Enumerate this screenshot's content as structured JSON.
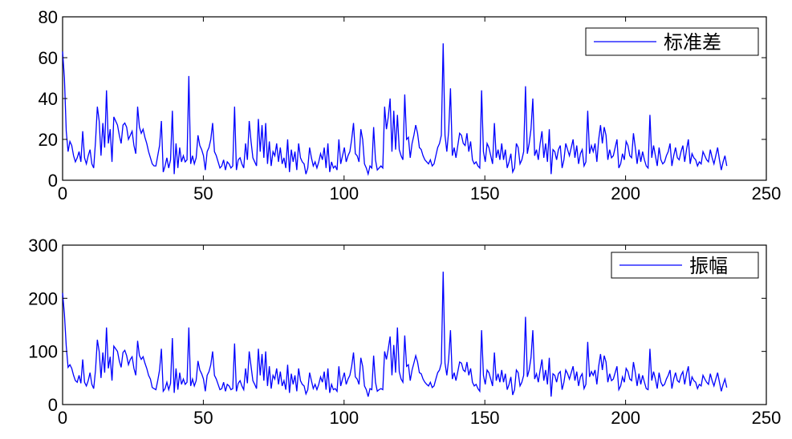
{
  "chart_data": [
    {
      "type": "line",
      "title": "",
      "xlabel": "",
      "ylabel": "",
      "xlim": [
        0,
        250
      ],
      "ylim": [
        0,
        80
      ],
      "xticks": [
        0,
        50,
        100,
        150,
        200,
        250
      ],
      "yticks": [
        0,
        20,
        40,
        60,
        80
      ],
      "xtick_labels": [
        "0",
        "50",
        "100",
        "150",
        "200",
        "250"
      ],
      "ytick_labels": [
        "0",
        "20",
        "40",
        "60",
        "80"
      ],
      "grid": false,
      "legend_position": "top-right",
      "line_color": "#0000ff",
      "series": [
        {
          "name": "标准差",
          "values": [
            63,
            50,
            24,
            14,
            19,
            17,
            12,
            9,
            11,
            14,
            9,
            24,
            11,
            8,
            12,
            15,
            8,
            6,
            19,
            36,
            29,
            12,
            28,
            16,
            44,
            18,
            25,
            9,
            31,
            29,
            27,
            22,
            18,
            27,
            28,
            26,
            20,
            22,
            24,
            17,
            13,
            36,
            26,
            23,
            25,
            21,
            18,
            14,
            11,
            8,
            7,
            7,
            12,
            17,
            29,
            4,
            7,
            11,
            6,
            10,
            34,
            3,
            18,
            6,
            16,
            9,
            12,
            9,
            10,
            51,
            8,
            12,
            8,
            11,
            22,
            17,
            15,
            12,
            5,
            14,
            16,
            20,
            28,
            14,
            12,
            9,
            6,
            7,
            10,
            5,
            9,
            8,
            6,
            7,
            36,
            5,
            10,
            11,
            8,
            6,
            18,
            10,
            29,
            19,
            11,
            9,
            7,
            30,
            14,
            27,
            11,
            28,
            8,
            19,
            7,
            14,
            12,
            18,
            9,
            16,
            8,
            11,
            6,
            20,
            4,
            15,
            9,
            14,
            5,
            18,
            11,
            9,
            8,
            3,
            6,
            16,
            11,
            7,
            9,
            6,
            9,
            13,
            10,
            16,
            6,
            18,
            4,
            9,
            6,
            7,
            5,
            20,
            8,
            12,
            16,
            9,
            12,
            14,
            20,
            28,
            13,
            12,
            9,
            25,
            20,
            8,
            6,
            3,
            7,
            6,
            26,
            10,
            5,
            6,
            7,
            6,
            36,
            25,
            31,
            40,
            14,
            34,
            15,
            32,
            15,
            12,
            10,
            42,
            20,
            21,
            11,
            18,
            22,
            27,
            23,
            16,
            15,
            12,
            10,
            9,
            8,
            10,
            7,
            8,
            12,
            16,
            18,
            22,
            67,
            22,
            14,
            24,
            45,
            12,
            16,
            11,
            17,
            23,
            22,
            18,
            17,
            23,
            14,
            19,
            10,
            8,
            9,
            7,
            6,
            44,
            14,
            9,
            18,
            16,
            12,
            8,
            28,
            11,
            15,
            10,
            18,
            10,
            15,
            6,
            9,
            13,
            4,
            6,
            18,
            16,
            8,
            10,
            14,
            46,
            13,
            18,
            25,
            40,
            12,
            15,
            10,
            18,
            24,
            11,
            18,
            9,
            25,
            3,
            15,
            14,
            10,
            15,
            17,
            6,
            10,
            18,
            15,
            12,
            16,
            20,
            11,
            17,
            8,
            13,
            15,
            7,
            9,
            34,
            13,
            17,
            14,
            18,
            9,
            20,
            27,
            18,
            26,
            22,
            10,
            15,
            11,
            12,
            16,
            20,
            6,
            8,
            13,
            10,
            19,
            17,
            12,
            11,
            23,
            16,
            8,
            15,
            9,
            14,
            10,
            7,
            6,
            32,
            11,
            17,
            12,
            7,
            16,
            10,
            8,
            9,
            12,
            14,
            18,
            7,
            12,
            16,
            11,
            10,
            14,
            17,
            9,
            15,
            20,
            8,
            13,
            11,
            10,
            7,
            9,
            8,
            14,
            12,
            10,
            9,
            15,
            11,
            8,
            12,
            16,
            10,
            5,
            9,
            12,
            7
          ]
        }
      ],
      "x_start": 0,
      "x_step": 0.65
    },
    {
      "type": "line",
      "title": "",
      "xlabel": "",
      "ylabel": "",
      "xlim": [
        0,
        250
      ],
      "ylim": [
        0,
        300
      ],
      "xticks": [
        0,
        50,
        100,
        150,
        200,
        250
      ],
      "yticks": [
        0,
        100,
        200,
        300
      ],
      "xtick_labels": [
        "0",
        "50",
        "100",
        "150",
        "200",
        "250"
      ],
      "ytick_labels": [
        "0",
        "100",
        "200",
        "300"
      ],
      "grid": false,
      "legend_position": "top-right",
      "line_color": "#0000ff",
      "series": [
        {
          "name": "振幅",
          "values": [
            210,
            170,
            110,
            70,
            75,
            68,
            55,
            45,
            42,
            55,
            40,
            85,
            42,
            35,
            45,
            60,
            38,
            30,
            65,
            122,
            100,
            50,
            98,
            60,
            145,
            68,
            90,
            45,
            110,
            105,
            100,
            82,
            70,
            98,
            102,
            92,
            75,
            85,
            90,
            68,
            55,
            120,
            92,
            85,
            90,
            78,
            68,
            55,
            48,
            32,
            30,
            28,
            45,
            65,
            105,
            25,
            30,
            42,
            28,
            40,
            125,
            22,
            68,
            28,
            60,
            38,
            48,
            38,
            42,
            145,
            35,
            48,
            35,
            45,
            82,
            65,
            58,
            48,
            25,
            55,
            62,
            75,
            100,
            55,
            48,
            38,
            28,
            30,
            42,
            25,
            38,
            35,
            28,
            30,
            115,
            25,
            40,
            45,
            35,
            28,
            68,
            40,
            100,
            72,
            45,
            38,
            30,
            105,
            55,
            95,
            45,
            100,
            35,
            72,
            30,
            55,
            48,
            68,
            38,
            62,
            35,
            45,
            28,
            75,
            22,
            58,
            38,
            55,
            25,
            68,
            45,
            38,
            35,
            20,
            28,
            60,
            45,
            30,
            38,
            28,
            38,
            52,
            42,
            62,
            28,
            68,
            22,
            38,
            28,
            30,
            25,
            72,
            35,
            48,
            60,
            38,
            48,
            55,
            72,
            98,
            52,
            48,
            38,
            88,
            72,
            35,
            28,
            15,
            30,
            28,
            92,
            42,
            25,
            28,
            30,
            28,
            100,
            85,
            105,
            128,
            55,
            112,
            60,
            145,
            62,
            48,
            42,
            130,
            72,
            75,
            45,
            65,
            78,
            92,
            80,
            60,
            58,
            48,
            42,
            38,
            35,
            42,
            32,
            35,
            48,
            60,
            65,
            78,
            250,
            78,
            55,
            85,
            140,
            48,
            60,
            45,
            62,
            80,
            78,
            65,
            62,
            80,
            55,
            68,
            42,
            35,
            38,
            30,
            25,
            140,
            55,
            38,
            65,
            60,
            48,
            35,
            98,
            45,
            58,
            42,
            65,
            42,
            58,
            28,
            38,
            52,
            18,
            28,
            65,
            60,
            35,
            42,
            55,
            165,
            52,
            65,
            88,
            140,
            48,
            58,
            42,
            65,
            85,
            45,
            65,
            38,
            88,
            15,
            58,
            55,
            42,
            58,
            62,
            28,
            42,
            65,
            58,
            48,
            60,
            72,
            45,
            62,
            35,
            52,
            58,
            30,
            38,
            118,
            52,
            62,
            55,
            65,
            38,
            72,
            95,
            65,
            92,
            80,
            42,
            58,
            45,
            48,
            60,
            72,
            28,
            35,
            52,
            42,
            68,
            62,
            48,
            45,
            80,
            60,
            35,
            58,
            38,
            55,
            42,
            30,
            28,
            105,
            45,
            62,
            48,
            30,
            60,
            42,
            35,
            38,
            48,
            55,
            65,
            30,
            48,
            60,
            45,
            42,
            55,
            62,
            38,
            58,
            72,
            35,
            52,
            45,
            42,
            30,
            38,
            35,
            55,
            48,
            42,
            38,
            58,
            45,
            35,
            48,
            60,
            42,
            25,
            38,
            48,
            32
          ]
        }
      ],
      "x_start": 0,
      "x_step": 0.65
    }
  ]
}
